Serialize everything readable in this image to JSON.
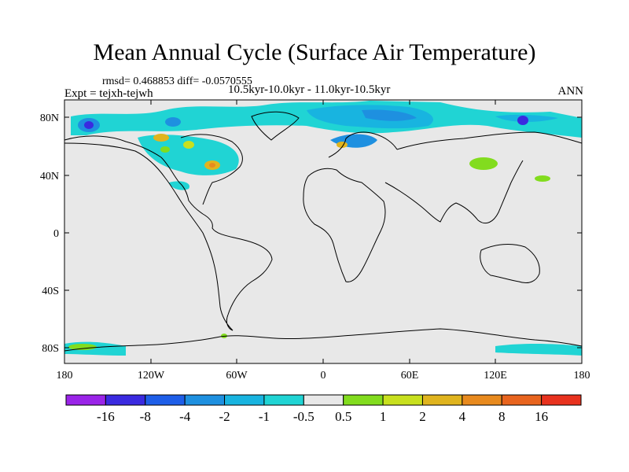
{
  "title": "Mean Annual Cycle (Surface Air Temperature)",
  "stats": "rmsd= 0.468853 diff= -0.0570555",
  "experiment": "Expt = tejxh-tejwh",
  "period": "10.5kyr-10.0kyr - 11.0kyr-10.5kyr",
  "season": "ANN",
  "map": {
    "lat_ticks": [
      "80N",
      "40N",
      "0",
      "40S",
      "80S"
    ],
    "lon_ticks": [
      "180",
      "120W",
      "60W",
      "0",
      "60E",
      "120E",
      "180"
    ],
    "background_color": "#e8e8e8"
  },
  "colorbar": {
    "labels": [
      "-16",
      "-8",
      "-4",
      "-2",
      "-1",
      "-0.5",
      "0.5",
      "1",
      "2",
      "4",
      "8",
      "16"
    ],
    "colors": [
      "#9a24e8",
      "#3a2ae0",
      "#1e5ee8",
      "#1e90e0",
      "#18b4e0",
      "#20d4d4",
      "#e8e8e8",
      "#82dc1e",
      "#c8e01e",
      "#e0b41e",
      "#e88a1e",
      "#e8641e",
      "#e8321e"
    ]
  }
}
